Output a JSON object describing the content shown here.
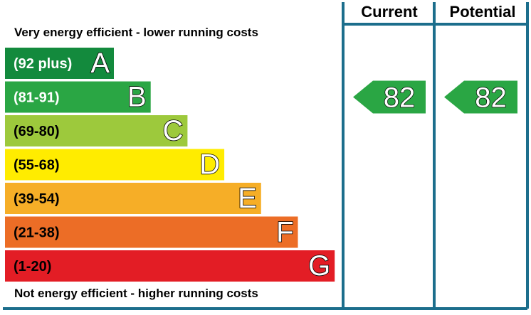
{
  "header": {
    "current_label": "Current",
    "potential_label": "Potential"
  },
  "captions": {
    "top": "Very energy efficient - lower running costs",
    "bottom": "Not energy efficient - higher running costs"
  },
  "colors": {
    "frame": "#1c6e8c",
    "label_text": "#ffffff",
    "label_text_dark": "#000000"
  },
  "chart_data": {
    "type": "bar",
    "categories": [
      "A",
      "B",
      "C",
      "D",
      "E",
      "F",
      "G"
    ],
    "ranges": [
      "(92 plus)",
      "(81-91)",
      "(69-80)",
      "(55-68)",
      "(39-54)",
      "(21-38)",
      "(1-20)"
    ],
    "band_colors": [
      "#138a3d",
      "#2aa644",
      "#9dc93c",
      "#ffec00",
      "#f6ae27",
      "#ec6d26",
      "#e31d25"
    ],
    "range_text_colors": [
      "#ffffff",
      "#ffffff",
      "#000000",
      "#000000",
      "#000000",
      "#000000",
      "#000000"
    ],
    "current": {
      "value": 82,
      "band": "B",
      "color": "#2aa644"
    },
    "potential": {
      "value": 82,
      "band": "B",
      "color": "#2aa644"
    }
  }
}
